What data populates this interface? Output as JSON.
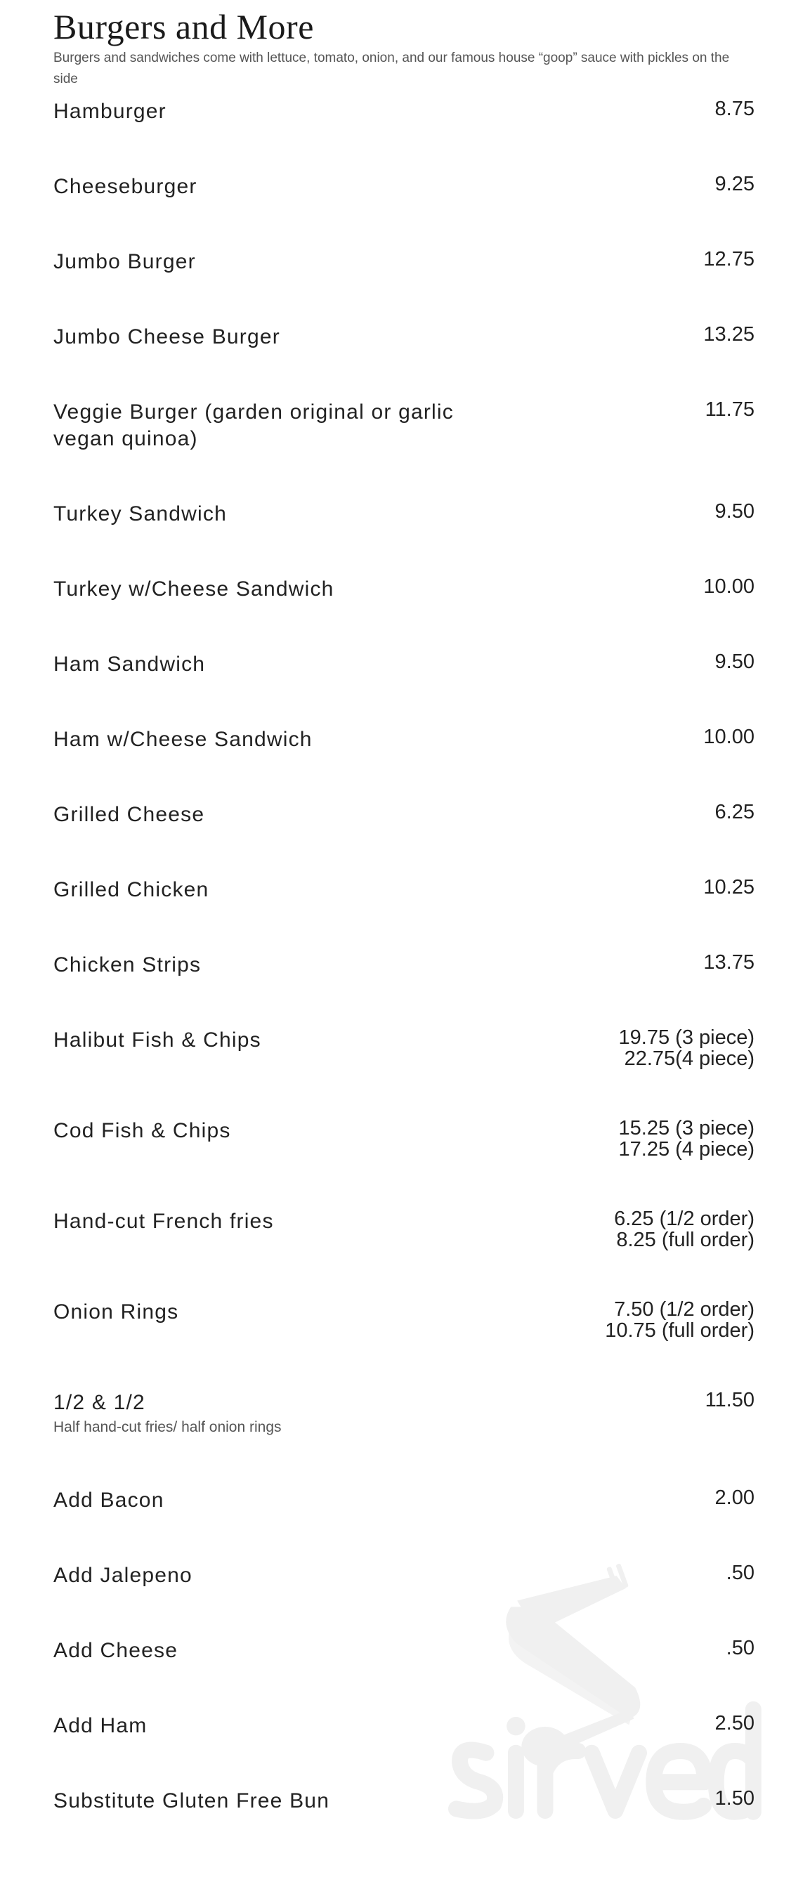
{
  "section": {
    "title": "Burgers and More",
    "subtitle": "Burgers and sandwiches come with lettuce, tomato, onion, and our famous house “goop” sauce with pickles on the side"
  },
  "items": [
    {
      "name": "Hamburger",
      "prices": [
        "8.75"
      ]
    },
    {
      "name": "Cheeseburger",
      "prices": [
        "9.25"
      ]
    },
    {
      "name": "Jumbo Burger",
      "prices": [
        "12.75"
      ]
    },
    {
      "name": "Jumbo Cheese Burger",
      "prices": [
        "13.25"
      ]
    },
    {
      "name": "Veggie Burger (garden original or garlic vegan quinoa)",
      "prices": [
        "11.75"
      ]
    },
    {
      "name": "Turkey Sandwich",
      "prices": [
        "9.50"
      ]
    },
    {
      "name": "Turkey w/Cheese Sandwich",
      "prices": [
        "10.00"
      ]
    },
    {
      "name": "Ham Sandwich",
      "prices": [
        "9.50"
      ]
    },
    {
      "name": "Ham w/Cheese Sandwich",
      "prices": [
        "10.00"
      ]
    },
    {
      "name": "Grilled Cheese",
      "prices": [
        "6.25"
      ]
    },
    {
      "name": "Grilled Chicken",
      "prices": [
        "10.25"
      ]
    },
    {
      "name": "Chicken Strips",
      "prices": [
        "13.75"
      ]
    },
    {
      "name": "Halibut Fish & Chips",
      "prices": [
        "19.75 (3 piece)",
        "22.75(4 piece)"
      ]
    },
    {
      "name": "Cod Fish & Chips",
      "prices": [
        "15.25 (3 piece)",
        "17.25 (4 piece)"
      ]
    },
    {
      "name": "Hand-cut French fries",
      "prices": [
        "6.25 (1/2 order)",
        "8.25 (full order)"
      ]
    },
    {
      "name": "Onion Rings",
      "prices": [
        "7.50 (1/2 order)",
        "10.75 (full order)"
      ]
    },
    {
      "name": "1/2 & 1/2",
      "description": "Half hand-cut fries/ half onion rings",
      "prices": [
        "11.50"
      ]
    },
    {
      "name": "Add Bacon",
      "prices": [
        "2.00"
      ]
    },
    {
      "name": "Add Jalepeno",
      "prices": [
        ".50"
      ]
    },
    {
      "name": "Add Cheese",
      "prices": [
        ".50"
      ]
    },
    {
      "name": "Add Ham",
      "prices": [
        "2.50"
      ]
    },
    {
      "name": "Substitute Gluten Free Bun",
      "prices": [
        "1.50"
      ]
    }
  ],
  "watermark": {
    "text": "sirved",
    "icon": "fork-spoon-icon",
    "color": "#f0f0f0"
  }
}
